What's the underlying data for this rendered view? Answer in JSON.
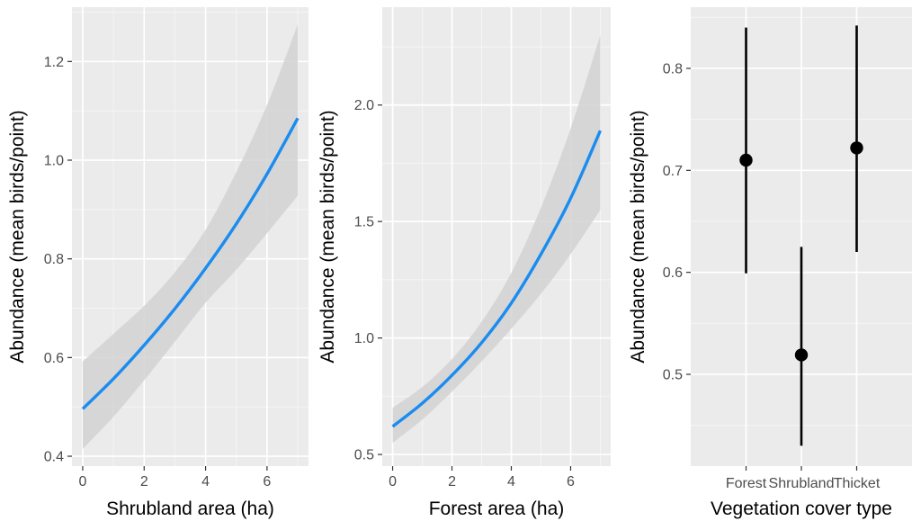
{
  "colors": {
    "panel_bg": "#ebebeb",
    "grid_major": "#ffffff",
    "ribbon": "#d2d2d2",
    "line": "#1a8cf0",
    "point": "#000000"
  },
  "chart_data": [
    {
      "type": "line",
      "xlabel": "Shrubland area (ha)",
      "ylabel": "Abundance (mean birds/point)",
      "xlim": [
        -0.35,
        7.35
      ],
      "ylim": [
        0.38,
        1.31
      ],
      "xticks": [
        0,
        2,
        4,
        6
      ],
      "xtick_labels": [
        "0",
        "2",
        "4",
        "6"
      ],
      "yticks": [
        0.4,
        0.6,
        0.8,
        1.0,
        1.2
      ],
      "ytick_labels": [
        "0.4",
        "0.6",
        "0.8",
        "1.0",
        "1.2"
      ],
      "grid": true,
      "series": [
        {
          "x": [
            0,
            1,
            2,
            3,
            4,
            5,
            6,
            7
          ],
          "y": [
            0.496,
            0.557,
            0.625,
            0.699,
            0.781,
            0.871,
            0.972,
            1.085
          ],
          "ymin": [
            0.415,
            0.48,
            0.554,
            0.632,
            0.711,
            0.778,
            0.852,
            0.928
          ],
          "ymax": [
            0.592,
            0.648,
            0.705,
            0.773,
            0.859,
            0.976,
            1.112,
            1.275
          ]
        }
      ]
    },
    {
      "type": "line",
      "xlabel": "Forest area (ha)",
      "ylabel": "Abundance (mean birds/point)",
      "xlim": [
        -0.35,
        7.35
      ],
      "ylim": [
        0.45,
        2.42
      ],
      "xticks": [
        0,
        2,
        4,
        6
      ],
      "xtick_labels": [
        "0",
        "2",
        "4",
        "6"
      ],
      "yticks": [
        0.5,
        1.0,
        1.5,
        2.0
      ],
      "ytick_labels": [
        "0.5",
        "1.0",
        "1.5",
        "2.0"
      ],
      "grid": true,
      "series": [
        {
          "x": [
            0,
            1,
            2,
            3,
            4,
            5,
            6,
            7
          ],
          "y": [
            0.62,
            0.72,
            0.84,
            0.98,
            1.15,
            1.36,
            1.6,
            1.89
          ],
          "ymin": [
            0.55,
            0.65,
            0.77,
            0.9,
            1.04,
            1.19,
            1.36,
            1.55
          ],
          "ymax": [
            0.7,
            0.79,
            0.91,
            1.07,
            1.28,
            1.56,
            1.9,
            2.3
          ]
        }
      ]
    },
    {
      "type": "scatter",
      "xlabel": "Vegetation cover type",
      "ylabel": "Abundance (mean birds/point)",
      "categories": [
        "Forest",
        "Shrubland",
        "Thicket"
      ],
      "values": [
        0.71,
        0.519,
        0.722
      ],
      "lower": [
        0.599,
        0.43,
        0.62
      ],
      "upper": [
        0.84,
        0.625,
        0.842
      ],
      "ylim": [
        0.41,
        0.86
      ],
      "yticks": [
        0.5,
        0.6,
        0.7,
        0.8
      ],
      "ytick_labels": [
        "0.5",
        "0.6",
        "0.7",
        "0.8"
      ],
      "grid": true
    }
  ]
}
